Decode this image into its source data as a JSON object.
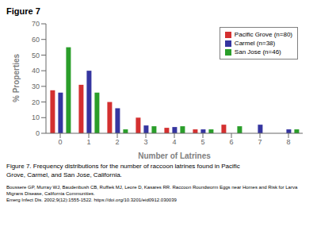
{
  "chart_data": {
    "type": "bar",
    "title": "Figure 7",
    "xlabel": "Number of Latrines",
    "ylabel": "% Properties",
    "categories": [
      0,
      1,
      2,
      3,
      4,
      5,
      6,
      7,
      8
    ],
    "series": [
      {
        "name": "Pacific Grove (n=80)",
        "color": "#d43030",
        "values": [
          27.5,
          31,
          20,
          10,
          3.5,
          2.5,
          5.5,
          0,
          0
        ]
      },
      {
        "name": "Carmel (n=38)",
        "color": "#3535a0",
        "values": [
          26,
          40,
          16,
          5,
          4,
          2.5,
          0,
          5.5,
          2.5
        ]
      },
      {
        "name": "San Jose (n=46)",
        "color": "#2a9e2a",
        "values": [
          55,
          26,
          2.5,
          4.5,
          4.5,
          2.5,
          4.5,
          0,
          2.5
        ]
      }
    ],
    "ylim": [
      0,
      70
    ],
    "yticks": [
      0,
      10,
      20,
      30,
      40,
      50,
      60,
      70
    ],
    "grid": false,
    "legend": "upper right",
    "annotations": [
      "Figure 7. Frequency distributions for the number of raccoon latrines found in Pacific",
      "Grove, Carmel, and San Jose, California.",
      "Boussere GP, Murray WJ, Baudenbush CB, Ruffiek MJ, Leore D, Kasares RR. Raccoon Roundworm Eggs near Homes and Risk for Larva Migrans Disease, California Communities.\nEmerg Infect Dis. 2002;9(12):1555-1522. https://doi.org/10.3201/eid0912.030039"
    ]
  }
}
